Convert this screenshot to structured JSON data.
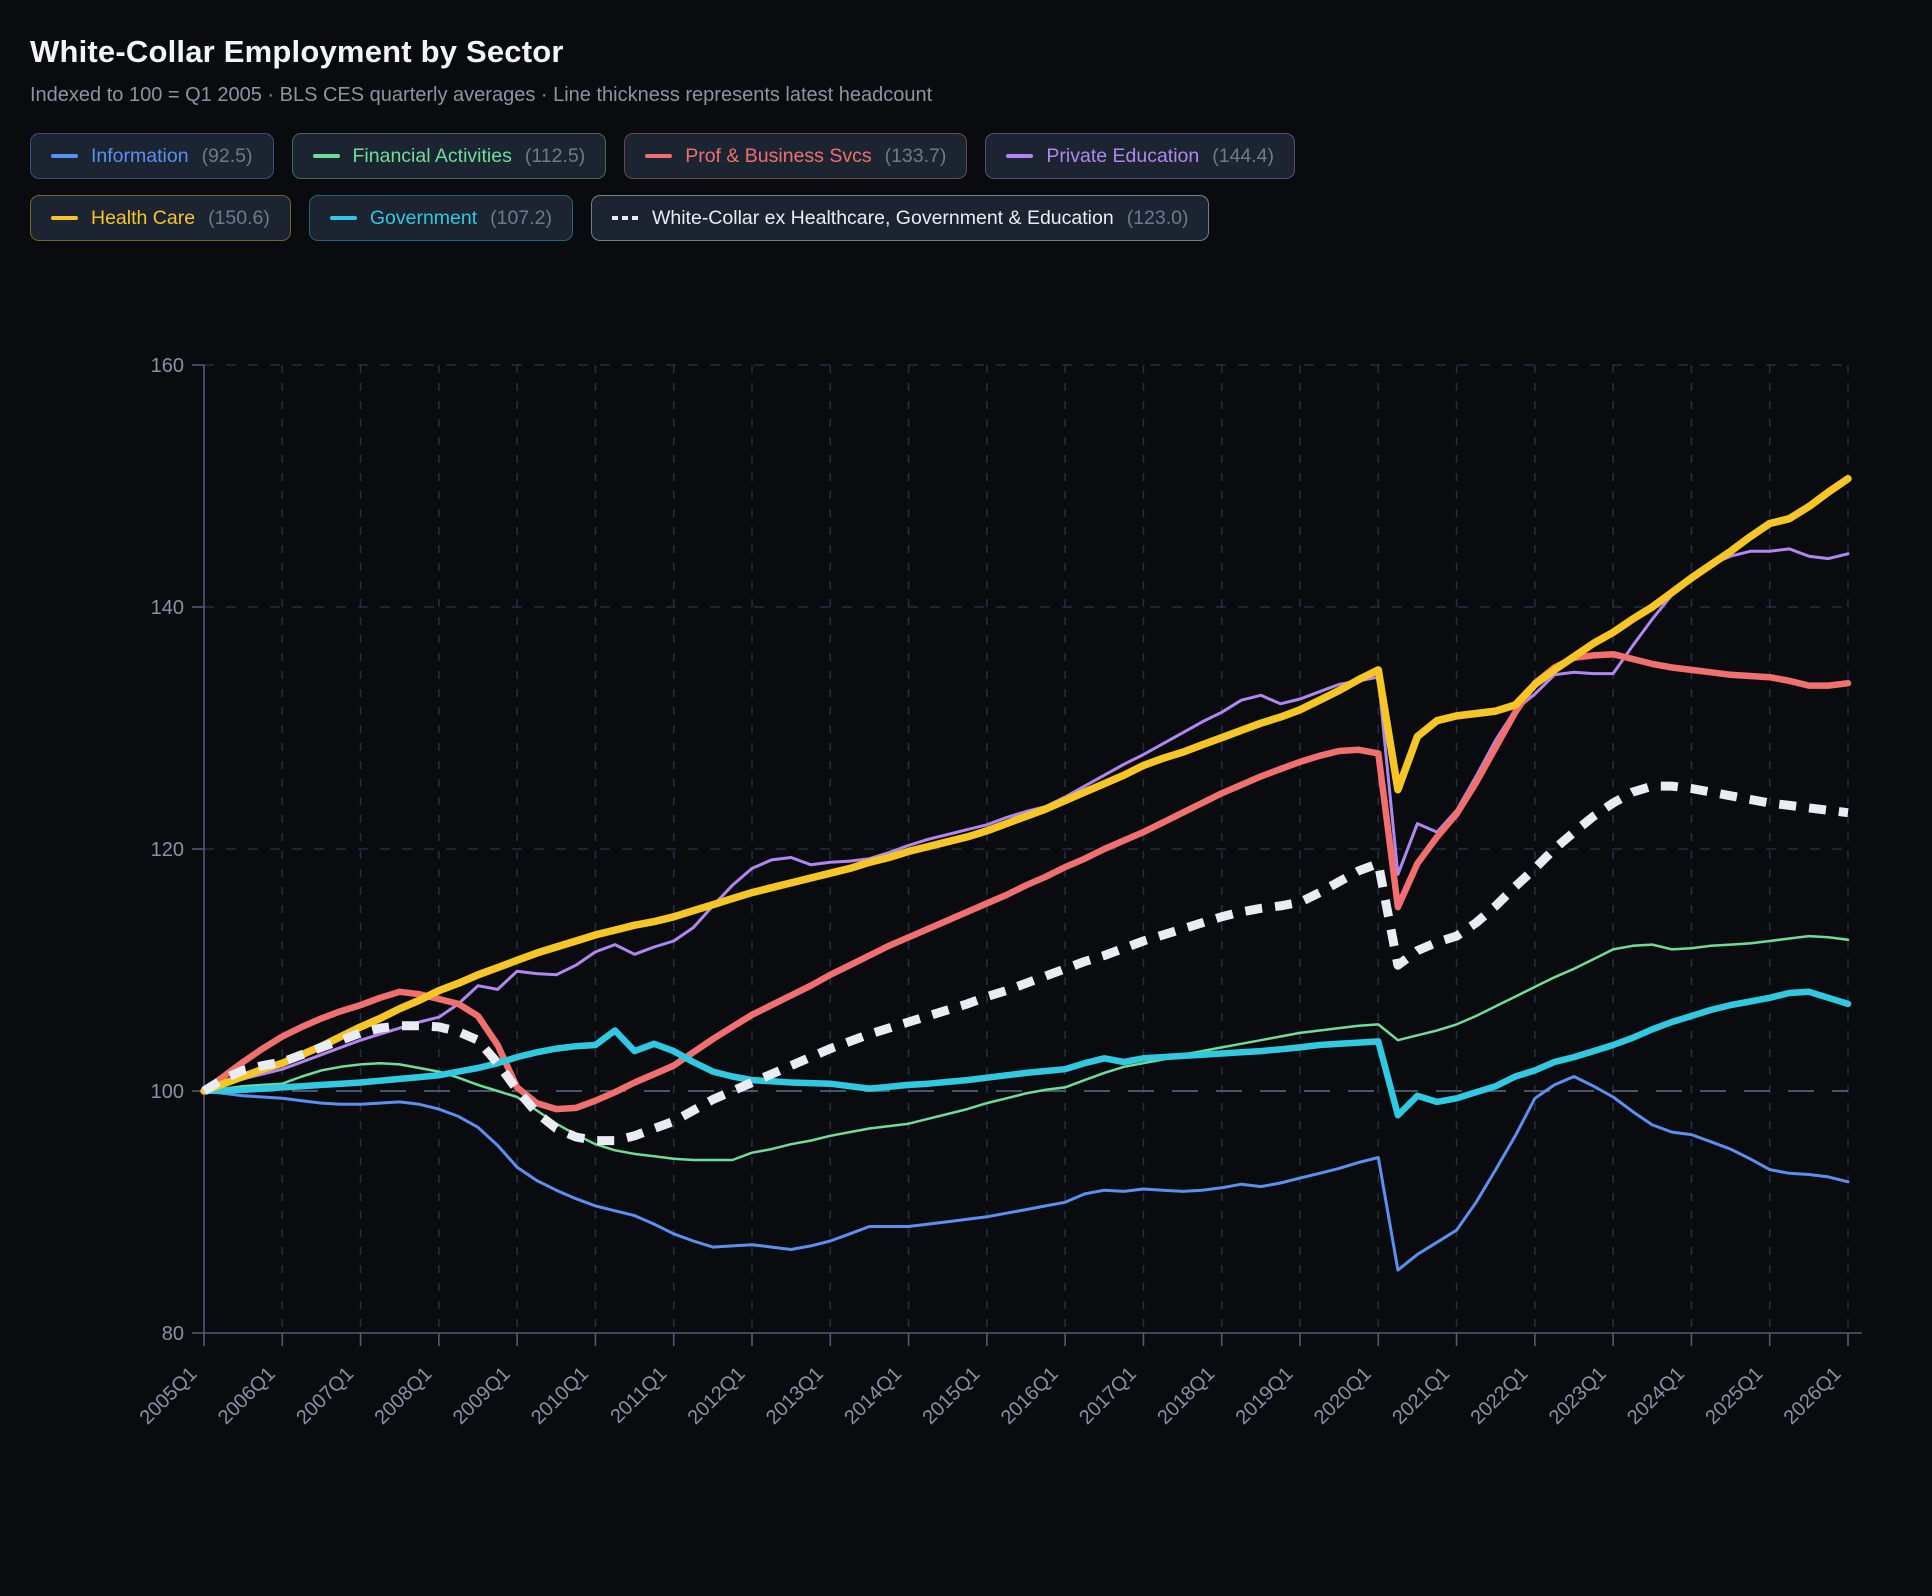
{
  "header": {
    "title": "White-Collar Employment by Sector",
    "subtitle": "Indexed to 100 = Q1 2005 · BLS CES quarterly averages · Line thickness represents latest headcount"
  },
  "chart_data": {
    "type": "line",
    "title": "White-Collar Employment by Sector",
    "index_note": "Indexed to 100 = Q1 2005",
    "x_unit": "quarter",
    "x_start": "2005Q1",
    "x_end": "2026Q1",
    "x_tick_labels": [
      "2005Q1",
      "2006Q1",
      "2007Q1",
      "2008Q1",
      "2009Q1",
      "2010Q1",
      "2011Q1",
      "2012Q1",
      "2013Q1",
      "2014Q1",
      "2015Q1",
      "2016Q1",
      "2017Q1",
      "2018Q1",
      "2019Q1",
      "2020Q1",
      "2021Q1",
      "2022Q1",
      "2023Q1",
      "2024Q1",
      "2025Q1",
      "2026Q1"
    ],
    "ylim": [
      80,
      160
    ],
    "y_ticks": [
      80,
      100,
      120,
      140,
      160
    ],
    "grid": "dashed",
    "baseline_value": 100,
    "legend_position": "top",
    "colors": {
      "grid": "#222e44",
      "baseline": "#49546a",
      "axis": "#4f5b72",
      "tick_text": "#8792a6",
      "chip_bg": "#1c2432"
    },
    "series": [
      {
        "name": "Information",
        "latest": 92.5,
        "latest_label": "(92.5)",
        "color": "#5b8ff2",
        "width": 3,
        "dashed": false,
        "values": [
          100,
          99.8,
          99.6,
          99.5,
          99.4,
          99.2,
          99.0,
          98.9,
          98.9,
          99.0,
          99.1,
          98.9,
          98.5,
          97.9,
          97.0,
          95.5,
          93.7,
          92.6,
          91.8,
          91.1,
          90.5,
          90.1,
          89.7,
          89.0,
          88.2,
          87.6,
          87.1,
          87.2,
          87.3,
          87.1,
          86.9,
          87.2,
          87.6,
          88.2,
          88.8,
          88.8,
          88.8,
          89.0,
          89.2,
          89.4,
          89.6,
          89.9,
          90.2,
          90.5,
          90.8,
          91.5,
          91.8,
          91.7,
          91.9,
          91.8,
          91.7,
          91.8,
          92.0,
          92.3,
          92.1,
          92.4,
          92.8,
          93.2,
          93.6,
          94.1,
          94.5,
          85.2,
          86.5,
          87.5,
          88.5,
          90.8,
          93.5,
          96.3,
          99.4,
          100.5,
          101.2,
          100.4,
          99.5,
          98.3,
          97.2,
          96.6,
          96.4,
          95.8,
          95.2,
          94.4,
          93.5,
          93.2,
          93.1,
          92.9,
          92.5
        ]
      },
      {
        "name": "Financial Activities",
        "latest": 112.5,
        "latest_label": "(112.5)",
        "color": "#6fdd9a",
        "width": 2.5,
        "dashed": false,
        "values": [
          100,
          100.2,
          100.4,
          100.5,
          100.6,
          101.2,
          101.7,
          102.0,
          102.2,
          102.3,
          102.2,
          101.9,
          101.6,
          101.1,
          100.5,
          100.0,
          99.5,
          98.4,
          97.3,
          96.4,
          95.6,
          95.1,
          94.8,
          94.6,
          94.4,
          94.3,
          94.3,
          94.3,
          94.9,
          95.2,
          95.6,
          95.9,
          96.3,
          96.6,
          96.9,
          97.1,
          97.3,
          97.7,
          98.1,
          98.5,
          99.0,
          99.4,
          99.8,
          100.1,
          100.3,
          100.9,
          101.5,
          102.0,
          102.3,
          102.6,
          103.0,
          103.3,
          103.6,
          103.9,
          104.2,
          104.5,
          104.8,
          105.0,
          105.2,
          105.4,
          105.5,
          104.2,
          104.6,
          105.0,
          105.5,
          106.2,
          107.0,
          107.8,
          108.6,
          109.4,
          110.1,
          110.9,
          111.7,
          112.0,
          112.1,
          111.7,
          111.8,
          112.0,
          112.1,
          112.2,
          112.4,
          112.6,
          112.8,
          112.7,
          112.5
        ]
      },
      {
        "name": "Prof & Business Svcs",
        "latest": 133.7,
        "latest_label": "(133.7)",
        "color": "#f0706f",
        "width": 6.5,
        "dashed": false,
        "values": [
          100,
          101.2,
          102.4,
          103.5,
          104.5,
          105.3,
          106.0,
          106.6,
          107.1,
          107.7,
          108.2,
          108.0,
          107.6,
          107.2,
          106.2,
          103.8,
          100.3,
          99.0,
          98.5,
          98.6,
          99.2,
          99.9,
          100.7,
          101.4,
          102.1,
          103.2,
          104.3,
          105.3,
          106.3,
          107.1,
          107.9,
          108.7,
          109.6,
          110.4,
          111.2,
          112.0,
          112.7,
          113.4,
          114.1,
          114.8,
          115.5,
          116.2,
          117.0,
          117.7,
          118.5,
          119.2,
          120.0,
          120.7,
          121.4,
          122.2,
          123.0,
          123.8,
          124.6,
          125.3,
          126.0,
          126.6,
          127.2,
          127.7,
          128.1,
          128.2,
          127.9,
          115.2,
          118.8,
          121.0,
          122.9,
          125.5,
          128.4,
          131.3,
          133.7,
          135.0,
          135.8,
          136.0,
          136.1,
          135.7,
          135.3,
          135.0,
          134.8,
          134.6,
          134.4,
          134.3,
          134.2,
          133.9,
          133.5,
          133.5,
          133.7
        ]
      },
      {
        "name": "Private Education",
        "latest": 144.4,
        "latest_label": "(144.4)",
        "color": "#b087f2",
        "width": 3,
        "dashed": false,
        "values": [
          100,
          100.5,
          101.0,
          101.4,
          101.8,
          102.4,
          103.0,
          103.6,
          104.2,
          104.7,
          105.2,
          105.7,
          106.1,
          107.2,
          108.7,
          108.4,
          109.9,
          109.7,
          109.6,
          110.4,
          111.5,
          112.1,
          111.3,
          111.9,
          112.4,
          113.5,
          115.3,
          117.0,
          118.4,
          119.1,
          119.3,
          118.7,
          118.9,
          119.0,
          119.2,
          119.7,
          120.3,
          120.8,
          121.2,
          121.6,
          122.0,
          122.6,
          123.1,
          123.5,
          124.3,
          125.2,
          126.1,
          127.0,
          127.8,
          128.7,
          129.6,
          130.5,
          131.3,
          132.3,
          132.7,
          132.0,
          132.4,
          133.0,
          133.6,
          133.9,
          134.2,
          117.9,
          122.1,
          121.4,
          123.2,
          126.0,
          129.0,
          131.5,
          132.8,
          134.4,
          134.6,
          134.5,
          134.5,
          136.8,
          139.0,
          141.0,
          142.3,
          143.5,
          144.2,
          144.6,
          144.6,
          144.8,
          144.2,
          144.0,
          144.4
        ]
      },
      {
        "name": "Health Care",
        "latest": 150.6,
        "latest_label": "(150.6)",
        "color": "#f5c626",
        "width": 7.5,
        "dashed": false,
        "values": [
          100,
          100.6,
          101.2,
          101.8,
          102.3,
          103.0,
          103.7,
          104.5,
          105.3,
          106.0,
          106.8,
          107.5,
          108.3,
          108.9,
          109.6,
          110.2,
          110.8,
          111.4,
          111.9,
          112.4,
          112.9,
          113.3,
          113.7,
          114.0,
          114.4,
          114.9,
          115.4,
          115.9,
          116.4,
          116.8,
          117.2,
          117.6,
          118.0,
          118.4,
          118.9,
          119.3,
          119.8,
          120.2,
          120.6,
          121.0,
          121.5,
          122.1,
          122.7,
          123.3,
          124.0,
          124.7,
          125.4,
          126.1,
          126.9,
          127.5,
          128.0,
          128.6,
          129.2,
          129.8,
          130.4,
          130.9,
          131.5,
          132.3,
          133.1,
          134.0,
          134.8,
          124.9,
          129.3,
          130.6,
          131.0,
          131.2,
          131.4,
          131.9,
          133.6,
          134.8,
          135.9,
          137.0,
          137.9,
          139.0,
          140.0,
          141.2,
          142.4,
          143.5,
          144.6,
          145.8,
          146.9,
          147.3,
          148.3,
          149.5,
          150.6
        ]
      },
      {
        "name": "Government",
        "latest": 107.2,
        "latest_label": "(107.2)",
        "color": "#30c9e0",
        "width": 6.5,
        "dashed": false,
        "values": [
          100,
          100.05,
          100.1,
          100.2,
          100.3,
          100.4,
          100.5,
          100.6,
          100.7,
          100.85,
          101.0,
          101.15,
          101.3,
          101.6,
          101.9,
          102.3,
          102.8,
          103.2,
          103.5,
          103.7,
          103.8,
          105.0,
          103.3,
          103.9,
          103.3,
          102.4,
          101.6,
          101.2,
          100.9,
          100.8,
          100.7,
          100.65,
          100.6,
          100.4,
          100.2,
          100.35,
          100.5,
          100.6,
          100.75,
          100.9,
          101.1,
          101.3,
          101.5,
          101.65,
          101.8,
          102.3,
          102.7,
          102.4,
          102.7,
          102.8,
          102.9,
          103.0,
          103.1,
          103.2,
          103.3,
          103.45,
          103.6,
          103.8,
          103.9,
          104.0,
          104.1,
          98.0,
          99.6,
          99.1,
          99.4,
          99.9,
          100.4,
          101.2,
          101.7,
          102.4,
          102.8,
          103.3,
          103.8,
          104.4,
          105.1,
          105.7,
          106.2,
          106.7,
          107.1,
          107.4,
          107.7,
          108.1,
          108.2,
          107.7,
          107.2
        ]
      },
      {
        "name": "White-Collar ex Healthcare, Government & Education",
        "latest": 123.0,
        "latest_label": "(123.0)",
        "color": "#e9edf3",
        "width": 9,
        "dashed": true,
        "values": [
          100,
          101.0,
          101.7,
          102.1,
          102.4,
          103.0,
          103.6,
          104.2,
          104.8,
          105.2,
          105.4,
          105.4,
          105.3,
          104.9,
          104.2,
          102.3,
          100.1,
          98.2,
          96.9,
          96.2,
          95.9,
          95.9,
          96.3,
          96.9,
          97.5,
          98.4,
          99.3,
          100.0,
          100.7,
          101.4,
          102.1,
          102.8,
          103.5,
          104.1,
          104.7,
          105.2,
          105.7,
          106.2,
          106.7,
          107.2,
          107.8,
          108.3,
          108.9,
          109.5,
          110.1,
          110.7,
          111.2,
          111.8,
          112.4,
          112.9,
          113.4,
          113.9,
          114.4,
          114.8,
          115.1,
          115.3,
          115.6,
          116.4,
          117.3,
          118.2,
          118.8,
          110.4,
          111.6,
          112.3,
          112.8,
          113.9,
          115.3,
          116.9,
          118.4,
          120.0,
          121.4,
          122.7,
          123.8,
          124.7,
          125.2,
          125.2,
          125.0,
          124.7,
          124.4,
          124.1,
          123.8,
          123.6,
          123.4,
          123.2,
          123.0
        ]
      }
    ]
  }
}
